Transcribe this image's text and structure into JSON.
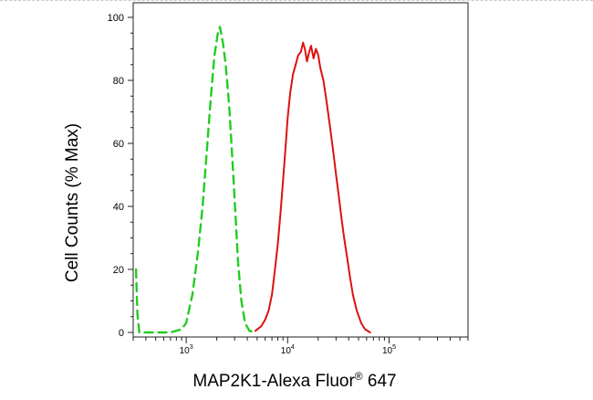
{
  "chart_data": {
    "type": "line",
    "title": "",
    "xlabel": "MAP2K1-Alexa Fluor",
    "xlabel_mark": "®",
    "xlabel_suffix": " 647",
    "ylabel": "Cell Counts (% Max)",
    "x_scale": "log",
    "xlim": [
      300,
      600000
    ],
    "ylim": [
      0,
      100
    ],
    "y_ticks": [
      0,
      20,
      40,
      60,
      80,
      100
    ],
    "y_tick_labels": [
      "0",
      "20",
      "40",
      "60",
      "80",
      "100"
    ],
    "x_major_ticks": [
      1000,
      10000,
      100000
    ],
    "x_tick_labels": [
      {
        "base": "10",
        "exp": "3"
      },
      {
        "base": "10",
        "exp": "4"
      },
      {
        "base": "10",
        "exp": "5"
      }
    ],
    "grid": false,
    "legend": "none",
    "series": [
      {
        "color": "#22cc22",
        "style": "dashed",
        "points": [
          [
            320,
            20
          ],
          [
            330,
            6
          ],
          [
            345,
            0
          ],
          [
            700,
            0
          ],
          [
            900,
            1
          ],
          [
            1000,
            3
          ],
          [
            1150,
            12
          ],
          [
            1300,
            25
          ],
          [
            1450,
            40
          ],
          [
            1600,
            58
          ],
          [
            1750,
            75
          ],
          [
            1900,
            88
          ],
          [
            2050,
            95
          ],
          [
            2150,
            97
          ],
          [
            2300,
            92
          ],
          [
            2450,
            85
          ],
          [
            2650,
            72
          ],
          [
            2850,
            55
          ],
          [
            3050,
            38
          ],
          [
            3250,
            22
          ],
          [
            3500,
            10
          ],
          [
            3800,
            3
          ],
          [
            4200,
            0.5
          ],
          [
            4800,
            0
          ]
        ]
      },
      {
        "color": "#dd1111",
        "style": "solid",
        "points": [
          [
            4800,
            0.5
          ],
          [
            5500,
            2
          ],
          [
            6000,
            4
          ],
          [
            6500,
            7
          ],
          [
            7000,
            12
          ],
          [
            7500,
            20
          ],
          [
            8000,
            28
          ],
          [
            8500,
            38
          ],
          [
            9000,
            48
          ],
          [
            9500,
            58
          ],
          [
            10000,
            68
          ],
          [
            10600,
            76
          ],
          [
            11300,
            82
          ],
          [
            12000,
            85
          ],
          [
            12700,
            88
          ],
          [
            13500,
            89
          ],
          [
            14200,
            92
          ],
          [
            14800,
            90
          ],
          [
            15500,
            86
          ],
          [
            16300,
            89
          ],
          [
            17000,
            91
          ],
          [
            18000,
            87
          ],
          [
            19000,
            90
          ],
          [
            20000,
            88
          ],
          [
            21000,
            84
          ],
          [
            22500,
            80
          ],
          [
            24000,
            74
          ],
          [
            26000,
            66
          ],
          [
            28000,
            58
          ],
          [
            30000,
            50
          ],
          [
            32000,
            43
          ],
          [
            34000,
            36
          ],
          [
            36000,
            30
          ],
          [
            38500,
            24
          ],
          [
            41000,
            18
          ],
          [
            44000,
            12
          ],
          [
            48000,
            7
          ],
          [
            53000,
            3
          ],
          [
            58000,
            1
          ],
          [
            65000,
            0
          ]
        ]
      }
    ]
  }
}
